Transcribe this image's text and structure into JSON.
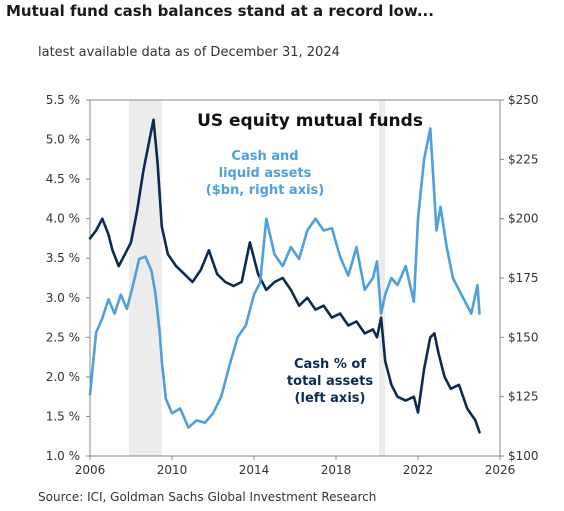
{
  "title": "Mutual fund cash balances stand at a record low...",
  "subtitle": "latest available data as of December 31, 2024",
  "source": "Source: ICI, Goldman Sachs Global Investment Research",
  "chart_data": {
    "type": "line",
    "title": "US equity mutual funds",
    "x_ticks": [
      "2006",
      "2010",
      "2014",
      "2018",
      "2022",
      "2026"
    ],
    "xlim": [
      2006,
      2026
    ],
    "left_axis": {
      "ylim": [
        1.0,
        5.5
      ],
      "ticks": [
        "1.0 %",
        "1.5 %",
        "2.0 %",
        "2.5 %",
        "3.0 %",
        "3.5 %",
        "4.0 %",
        "4.5 %",
        "5.0 %",
        "5.5 %"
      ]
    },
    "right_axis": {
      "ylim": [
        100,
        250
      ],
      "ticks": [
        "$100",
        "$125",
        "$150",
        "$175",
        "$200",
        "$225",
        "$250"
      ]
    },
    "shaded_periods": [
      [
        2007.9,
        2009.5
      ],
      [
        2020.1,
        2020.4
      ]
    ],
    "annotations": {
      "cash_assets": [
        "Cash and",
        "liquid assets",
        "($bn, right axis)"
      ],
      "cash_pct": [
        "Cash %  of",
        "total assets",
        "(left axis)"
      ]
    },
    "colors": {
      "cash_pct": "#0d2b52",
      "cash_assets": "#4f9fdc",
      "recession": "#ececec"
    },
    "series": [
      {
        "key": "cash_pct",
        "axis": "left",
        "x": [
          2006.0,
          2006.3,
          2006.6,
          2006.9,
          2007.1,
          2007.4,
          2007.7,
          2008.0,
          2008.3,
          2008.6,
          2008.9,
          2009.1,
          2009.3,
          2009.5,
          2009.8,
          2010.2,
          2010.6,
          2011.0,
          2011.4,
          2011.8,
          2012.2,
          2012.6,
          2013.0,
          2013.4,
          2013.8,
          2014.2,
          2014.6,
          2015.0,
          2015.4,
          2015.8,
          2016.2,
          2016.6,
          2017.0,
          2017.4,
          2017.8,
          2018.2,
          2018.6,
          2019.0,
          2019.4,
          2019.8,
          2020.0,
          2020.2,
          2020.4,
          2020.7,
          2021.0,
          2021.4,
          2021.8,
          2022.0,
          2022.3,
          2022.6,
          2022.8,
          2023.0,
          2023.3,
          2023.6,
          2024.0,
          2024.4,
          2024.8,
          2025.0
        ],
        "y": [
          3.75,
          3.85,
          4.0,
          3.8,
          3.6,
          3.4,
          3.55,
          3.7,
          4.1,
          4.6,
          5.0,
          5.25,
          4.7,
          3.9,
          3.55,
          3.4,
          3.3,
          3.2,
          3.35,
          3.6,
          3.3,
          3.2,
          3.15,
          3.2,
          3.7,
          3.3,
          3.1,
          3.2,
          3.25,
          3.1,
          2.9,
          3.0,
          2.85,
          2.9,
          2.75,
          2.8,
          2.65,
          2.7,
          2.55,
          2.6,
          2.5,
          2.75,
          2.2,
          1.9,
          1.75,
          1.7,
          1.75,
          1.55,
          2.1,
          2.5,
          2.55,
          2.3,
          2.0,
          1.85,
          1.9,
          1.6,
          1.45,
          1.3
        ]
      },
      {
        "key": "cash_assets",
        "axis": "right",
        "x": [
          2006.0,
          2006.3,
          2006.6,
          2006.9,
          2007.2,
          2007.5,
          2007.8,
          2008.1,
          2008.4,
          2008.7,
          2009.0,
          2009.2,
          2009.4,
          2009.5,
          2009.7,
          2010.0,
          2010.4,
          2010.8,
          2011.2,
          2011.6,
          2012.0,
          2012.4,
          2012.8,
          2013.2,
          2013.6,
          2014.0,
          2014.3,
          2014.6,
          2015.0,
          2015.4,
          2015.8,
          2016.2,
          2016.6,
          2017.0,
          2017.4,
          2017.8,
          2018.2,
          2018.6,
          2019.0,
          2019.4,
          2019.8,
          2020.0,
          2020.2,
          2020.4,
          2020.7,
          2021.0,
          2021.4,
          2021.8,
          2022.0,
          2022.3,
          2022.6,
          2022.9,
          2023.1,
          2023.4,
          2023.7,
          2024.0,
          2024.3,
          2024.6,
          2024.9,
          2025.0
        ],
        "y": [
          126,
          152,
          158,
          166,
          160,
          168,
          162,
          172,
          183,
          184,
          178,
          168,
          152,
          140,
          124,
          118,
          120,
          112,
          115,
          114,
          118,
          125,
          138,
          150,
          155,
          168,
          173,
          200,
          185,
          180,
          188,
          183,
          195,
          200,
          195,
          196,
          184,
          176,
          188,
          170,
          175,
          182,
          160,
          168,
          175,
          172,
          180,
          165,
          200,
          225,
          238,
          195,
          205,
          188,
          175,
          170,
          165,
          160,
          172,
          160
        ]
      }
    ]
  }
}
